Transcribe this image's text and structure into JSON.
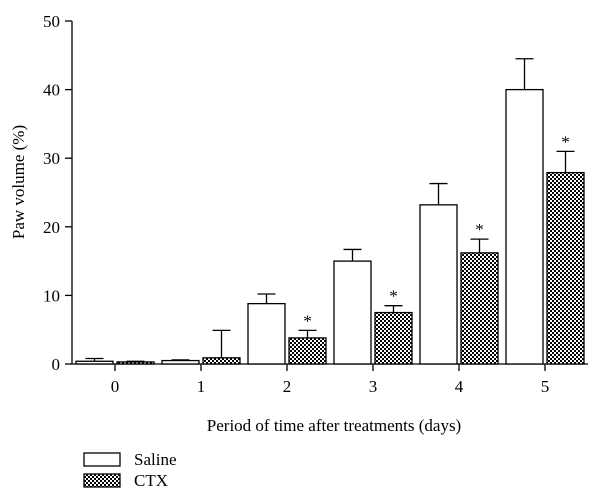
{
  "chart_data": {
    "type": "bar",
    "title": "",
    "xlabel": "Period of time after treatments (days)",
    "ylabel": "Paw volume (%)",
    "ylim": [
      0,
      50
    ],
    "yticks": [
      0,
      10,
      20,
      30,
      40,
      50
    ],
    "categories": [
      "0",
      "1",
      "2",
      "3",
      "4",
      "5"
    ],
    "series": [
      {
        "name": "Saline",
        "values": [
          0.4,
          0.5,
          8.8,
          15.0,
          23.2,
          40.0
        ],
        "errors": [
          0.4,
          0.1,
          1.4,
          1.7,
          3.1,
          4.5
        ],
        "significance": [
          "",
          "",
          "",
          "",
          "",
          ""
        ],
        "fill": "#ffffff",
        "pattern": "none"
      },
      {
        "name": "CTX",
        "values": [
          0.3,
          0.9,
          3.8,
          7.5,
          16.2,
          27.9
        ],
        "errors": [
          0.1,
          4.0,
          1.1,
          1.0,
          2.0,
          3.1
        ],
        "significance": [
          "",
          "",
          "*",
          "*",
          "*",
          "*"
        ],
        "fill": "#000000",
        "pattern": "checkered"
      }
    ],
    "legend_position": "bottom-left",
    "grid": false
  },
  "axis_color": "#000000"
}
